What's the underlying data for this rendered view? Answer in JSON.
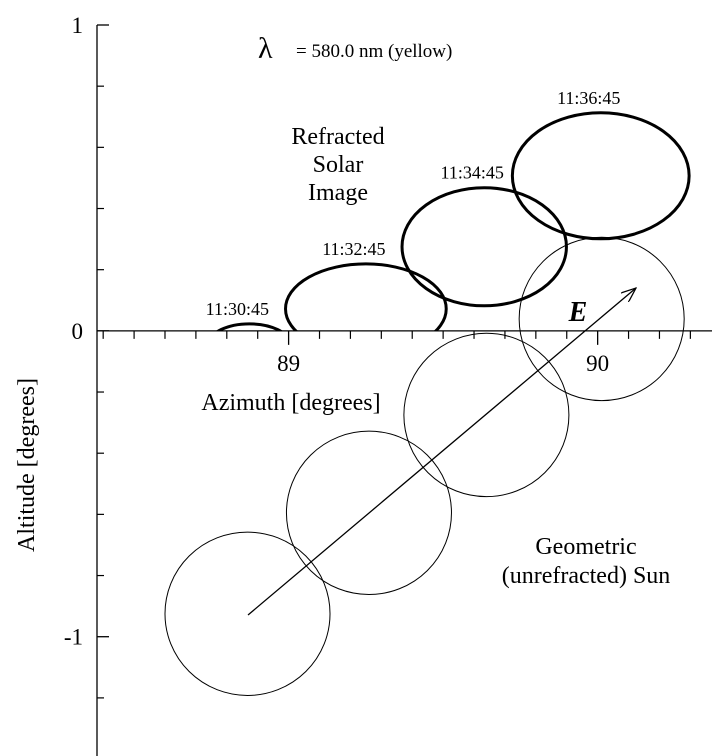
{
  "chart_data": {
    "type": "ellipse",
    "x_label": "Azimuth [degrees]",
    "y_label": "Altitude [degrees]",
    "xlim": [
      88.38,
      90.37
    ],
    "ylim": [
      -1.39,
      1
    ],
    "xticks": [
      89,
      90
    ],
    "yticks": [
      -1,
      0,
      1
    ],
    "xminor_ticks": [
      88.4,
      88.5,
      88.6,
      88.7,
      88.8,
      88.9,
      89.1,
      89.2,
      89.3,
      89.4,
      89.5,
      89.6,
      89.7,
      89.8,
      89.9,
      90.1,
      90.2,
      90.3
    ],
    "yminor_ticks": [
      0.8,
      0.6,
      0.4,
      0.2,
      -0.2,
      -0.4,
      -0.6,
      -0.8,
      -1.2
    ],
    "wavelength_symbol": "λ",
    "wavelength_text": "= 580.0 nm (yellow)",
    "direction_label": "E",
    "refracted": {
      "label": [
        "Refracted",
        "Solar",
        "Image"
      ],
      "times": [
        "11:30:45",
        "11:32:45",
        "11:34:45",
        "11:36:45"
      ],
      "x": [
        88.873,
        89.25,
        89.633,
        90.01
      ],
      "y": [
        -0.042,
        0.072,
        0.275,
        0.507
      ],
      "rx": [
        0.13,
        0.26,
        0.266,
        0.286
      ],
      "ry": [
        0.065,
        0.147,
        0.193,
        0.206
      ]
    },
    "geometric": {
      "label": [
        "Geometric",
        "(unrefracted) Sun"
      ],
      "x": [
        88.867,
        89.26,
        89.64,
        90.013
      ],
      "y": [
        -0.925,
        -0.595,
        -0.275,
        0.039
      ],
      "r": [
        0.267,
        0.267,
        0.267,
        0.267
      ]
    }
  }
}
